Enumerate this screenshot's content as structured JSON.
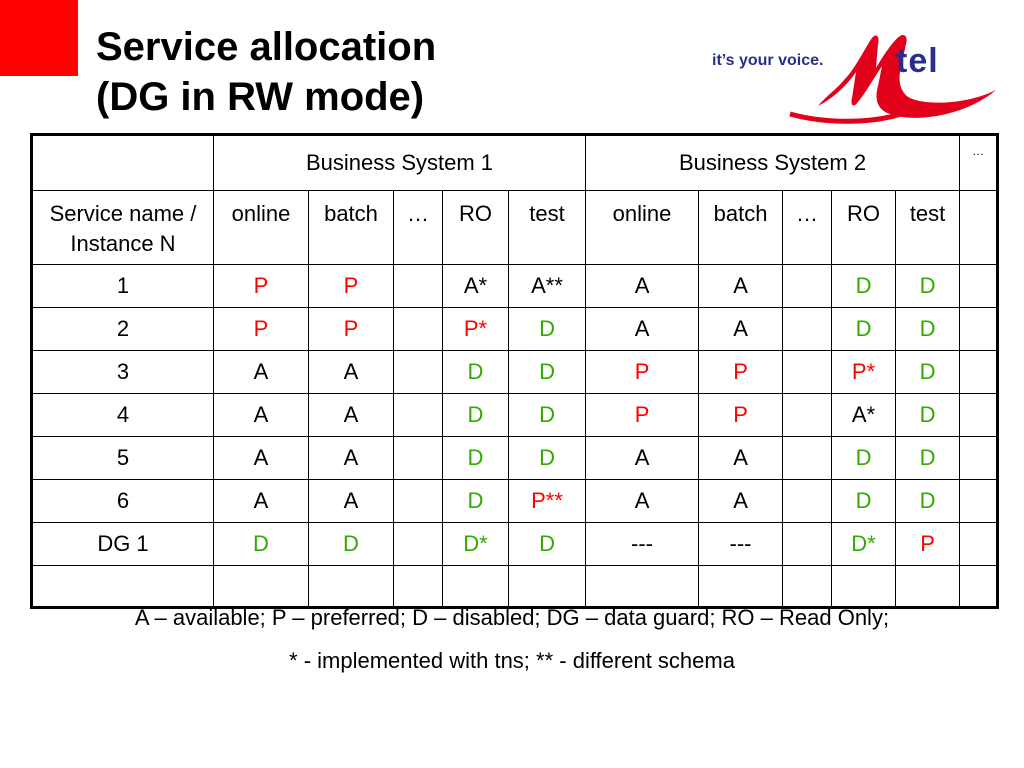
{
  "title": {
    "line1": "Service allocation",
    "line2": "(DG in RW mode)"
  },
  "logo": {
    "tagline": "it’s your voice.",
    "brand": "tel",
    "colors": {
      "red": "#e2001a",
      "navy": "#2a2e86"
    }
  },
  "colors": {
    "accent_red": "#ff0000",
    "available": "#000000",
    "preferred": "#ff0000",
    "disabled": "#33aa00"
  },
  "table": {
    "groups": [
      "Business System 1",
      "Business System 2",
      "…"
    ],
    "first_header": "Service name / Instance N",
    "columns": [
      "online",
      "batch",
      "…",
      "RO",
      "test",
      "online",
      "batch",
      "…",
      "RO",
      "test"
    ],
    "rows": [
      {
        "name": "1",
        "cells": [
          "P",
          "P",
          "",
          "A*",
          "A**",
          "A",
          "A",
          "",
          "D",
          "D"
        ]
      },
      {
        "name": "2",
        "cells": [
          "P",
          "P",
          "",
          "P*",
          "D",
          "A",
          "A",
          "",
          "D",
          "D"
        ]
      },
      {
        "name": "3",
        "cells": [
          "A",
          "A",
          "",
          "D",
          "D",
          "P",
          "P",
          "",
          "P*",
          "D"
        ]
      },
      {
        "name": "4",
        "cells": [
          "A",
          "A",
          "",
          "D",
          "D",
          "P",
          "P",
          "",
          "A*",
          "D"
        ]
      },
      {
        "name": "5",
        "cells": [
          "A",
          "A",
          "",
          "D",
          "D",
          "A",
          "A",
          "",
          "D",
          "D"
        ]
      },
      {
        "name": "6",
        "cells": [
          "A",
          "A",
          "",
          "D",
          "P**",
          "A",
          "A",
          "",
          "D",
          "D"
        ]
      },
      {
        "name": "DG 1",
        "cells": [
          "D",
          "D",
          "",
          "D*",
          "D",
          "---",
          "---",
          "",
          "D*",
          "P"
        ]
      }
    ]
  },
  "legend": {
    "line1": "A – available; P – preferred; D – disabled; DG – data guard; RO – Read Only;",
    "line2": "* - implemented with tns; ** - different schema"
  }
}
